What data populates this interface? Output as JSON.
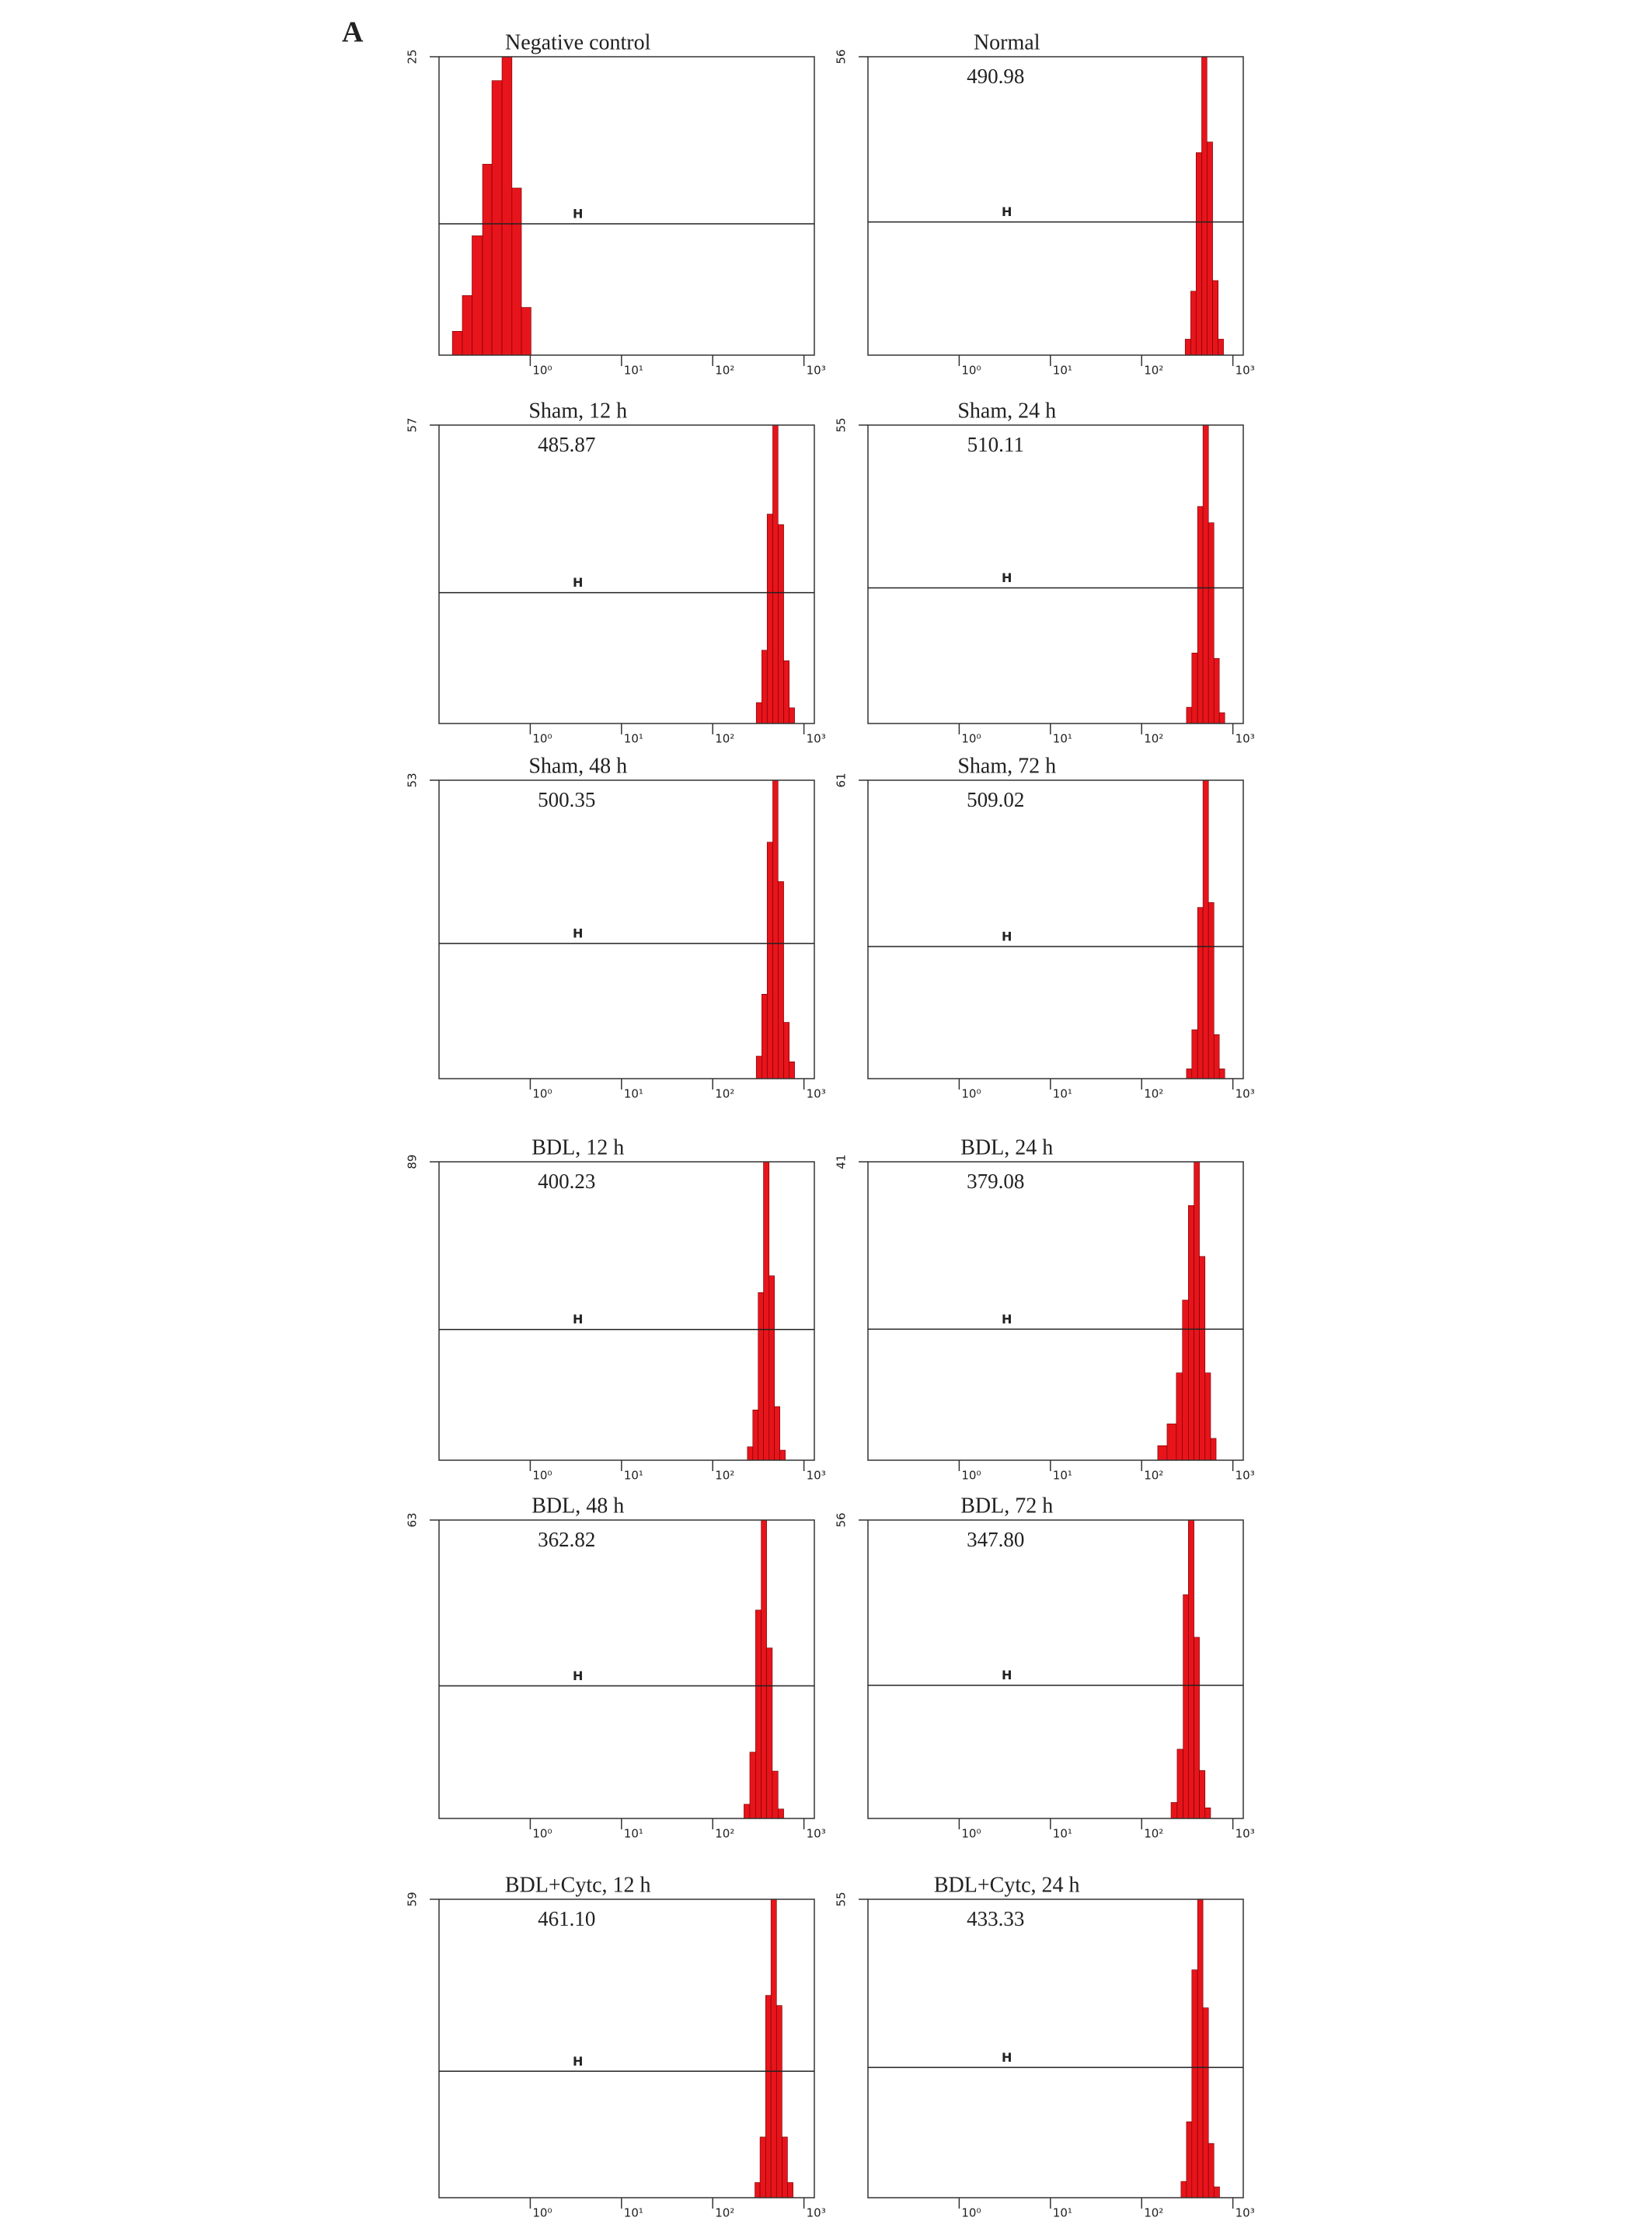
{
  "figure_label": "A",
  "chart_data": [
    {
      "type": "histogram",
      "title": "Negative control",
      "mean_label": "",
      "xscale": "log",
      "xlim": [
        0.1,
        1300
      ],
      "xticks": [
        {
          "value": 1,
          "label": "10⁰"
        },
        {
          "value": 10,
          "label": "10¹"
        },
        {
          "value": 100,
          "label": "10²"
        },
        {
          "value": 1000,
          "label": "10³"
        }
      ],
      "ylim": [
        0,
        25
      ],
      "yticks": [
        25
      ],
      "marker_label": "H",
      "marker_y": 11,
      "color": "#e8141b",
      "bins": [
        0.14,
        0.18,
        0.23,
        0.3,
        0.38,
        0.49,
        0.63,
        0.8,
        1.02
      ],
      "counts": [
        2,
        5,
        10,
        16,
        23,
        25,
        14,
        4
      ]
    },
    {
      "type": "histogram",
      "title": "Normal",
      "mean_label": "490.98",
      "xscale": "log",
      "xlim": [
        0.1,
        1300
      ],
      "xticks": [
        {
          "value": 1,
          "label": "10⁰"
        },
        {
          "value": 10,
          "label": "10¹"
        },
        {
          "value": 100,
          "label": "10²"
        },
        {
          "value": 1000,
          "label": "10³"
        }
      ],
      "ylim": [
        0,
        56
      ],
      "yticks": [
        56
      ],
      "marker_label": "H",
      "marker_y": 25,
      "color": "#e8141b",
      "bins": [
        300,
        345,
        395,
        455,
        520,
        600,
        690,
        790
      ],
      "counts": [
        3,
        12,
        38,
        56,
        40,
        14,
        3
      ]
    },
    {
      "type": "histogram",
      "title": "Sham, 12 h",
      "mean_label": "485.87",
      "xscale": "log",
      "xlim": [
        0.1,
        1300
      ],
      "xticks": [
        {
          "value": 1,
          "label": "10⁰"
        },
        {
          "value": 10,
          "label": "10¹"
        },
        {
          "value": 100,
          "label": "10²"
        },
        {
          "value": 1000,
          "label": "10³"
        }
      ],
      "ylim": [
        0,
        57
      ],
      "yticks": [
        57
      ],
      "marker_label": "H",
      "marker_y": 25,
      "color": "#e8141b",
      "bins": [
        300,
        345,
        395,
        455,
        520,
        600,
        690,
        790
      ],
      "counts": [
        4,
        14,
        40,
        57,
        38,
        12,
        3
      ]
    },
    {
      "type": "histogram",
      "title": "Sham, 24 h",
      "mean_label": "510.11",
      "xscale": "log",
      "xlim": [
        0.1,
        1300
      ],
      "xticks": [
        {
          "value": 1,
          "label": "10⁰"
        },
        {
          "value": 10,
          "label": "10¹"
        },
        {
          "value": 100,
          "label": "10²"
        },
        {
          "value": 1000,
          "label": "10³"
        }
      ],
      "ylim": [
        0,
        55
      ],
      "yticks": [
        55
      ],
      "marker_label": "H",
      "marker_y": 25,
      "color": "#e8141b",
      "bins": [
        310,
        355,
        410,
        470,
        540,
        620,
        710,
        815
      ],
      "counts": [
        3,
        13,
        40,
        55,
        37,
        12,
        2
      ]
    },
    {
      "type": "histogram",
      "title": "Sham, 48 h",
      "mean_label": "500.35",
      "xscale": "log",
      "xlim": [
        0.1,
        1300
      ],
      "xticks": [
        {
          "value": 1,
          "label": "10⁰"
        },
        {
          "value": 10,
          "label": "10¹"
        },
        {
          "value": 100,
          "label": "10²"
        },
        {
          "value": 1000,
          "label": "10³"
        }
      ],
      "ylim": [
        0,
        53
      ],
      "yticks": [
        53
      ],
      "marker_label": "H",
      "marker_y": 24,
      "color": "#e8141b",
      "bins": [
        300,
        345,
        395,
        455,
        520,
        600,
        690,
        790
      ],
      "counts": [
        4,
        15,
        42,
        53,
        35,
        10,
        3
      ]
    },
    {
      "type": "histogram",
      "title": "Sham, 72 h",
      "mean_label": "509.02",
      "xscale": "log",
      "xlim": [
        0.1,
        1300
      ],
      "xticks": [
        {
          "value": 1,
          "label": "10⁰"
        },
        {
          "value": 10,
          "label": "10¹"
        },
        {
          "value": 100,
          "label": "10²"
        },
        {
          "value": 1000,
          "label": "10³"
        }
      ],
      "ylim": [
        0,
        61
      ],
      "yticks": [
        61
      ],
      "marker_label": "H",
      "marker_y": 27,
      "color": "#e8141b",
      "bins": [
        310,
        355,
        410,
        470,
        540,
        620,
        710,
        815
      ],
      "counts": [
        2,
        10,
        35,
        61,
        36,
        9,
        2
      ]
    },
    {
      "type": "histogram",
      "title": "BDL, 12 h",
      "mean_label": "400.23",
      "xscale": "log",
      "xlim": [
        0.1,
        1300
      ],
      "xticks": [
        {
          "value": 1,
          "label": "10⁰"
        },
        {
          "value": 10,
          "label": "10¹"
        },
        {
          "value": 100,
          "label": "10²"
        },
        {
          "value": 1000,
          "label": "10³"
        }
      ],
      "ylim": [
        0,
        89
      ],
      "yticks": [
        89
      ],
      "marker_label": "H",
      "marker_y": 39,
      "color": "#e8141b",
      "bins": [
        240,
        275,
        315,
        360,
        415,
        475,
        545,
        625
      ],
      "counts": [
        4,
        15,
        50,
        89,
        55,
        16,
        3
      ]
    },
    {
      "type": "histogram",
      "title": "BDL, 24 h",
      "mean_label": "379.08",
      "xscale": "log",
      "xlim": [
        0.1,
        1300
      ],
      "xticks": [
        {
          "value": 1,
          "label": "10⁰"
        },
        {
          "value": 10,
          "label": "10¹"
        },
        {
          "value": 100,
          "label": "10²"
        },
        {
          "value": 1000,
          "label": "10³"
        }
      ],
      "ylim": [
        0,
        41
      ],
      "yticks": [
        41
      ],
      "marker_label": "H",
      "marker_y": 18,
      "color": "#e8141b",
      "bins": [
        150,
        190,
        240,
        280,
        325,
        375,
        430,
        495,
        570,
        655
      ],
      "counts": [
        2,
        5,
        12,
        22,
        35,
        41,
        28,
        12,
        3
      ]
    },
    {
      "type": "histogram",
      "title": "BDL, 48 h",
      "mean_label": "362.82",
      "xscale": "log",
      "xlim": [
        0.1,
        1300
      ],
      "xticks": [
        {
          "value": 1,
          "label": "10⁰"
        },
        {
          "value": 10,
          "label": "10¹"
        },
        {
          "value": 100,
          "label": "10²"
        },
        {
          "value": 1000,
          "label": "10³"
        }
      ],
      "ylim": [
        0,
        63
      ],
      "yticks": [
        63
      ],
      "marker_label": "H",
      "marker_y": 28,
      "color": "#e8141b",
      "bins": [
        220,
        255,
        295,
        340,
        390,
        450,
        520,
        600
      ],
      "counts": [
        3,
        14,
        44,
        63,
        36,
        10,
        2
      ]
    },
    {
      "type": "histogram",
      "title": "BDL, 72 h",
      "mean_label": "347.80",
      "xscale": "log",
      "xlim": [
        0.1,
        1300
      ],
      "xticks": [
        {
          "value": 1,
          "label": "10⁰"
        },
        {
          "value": 10,
          "label": "10¹"
        },
        {
          "value": 100,
          "label": "10²"
        },
        {
          "value": 1000,
          "label": "10³"
        }
      ],
      "ylim": [
        0,
        56
      ],
      "yticks": [
        56
      ],
      "marker_label": "H",
      "marker_y": 25,
      "color": "#e8141b",
      "bins": [
        210,
        245,
        285,
        325,
        375,
        430,
        495,
        570
      ],
      "counts": [
        3,
        13,
        42,
        56,
        34,
        9,
        2
      ]
    },
    {
      "type": "histogram",
      "title": "BDL+Cytc, 12 h",
      "mean_label": "461.10",
      "xscale": "log",
      "xlim": [
        0.1,
        1300
      ],
      "xticks": [
        {
          "value": 1,
          "label": "10⁰"
        },
        {
          "value": 10,
          "label": "10¹"
        },
        {
          "value": 100,
          "label": "10²"
        },
        {
          "value": 1000,
          "label": "10³"
        }
      ],
      "ylim": [
        0,
        59
      ],
      "yticks": [
        59
      ],
      "marker_label": "H",
      "marker_y": 25,
      "color": "#e8141b",
      "bins": [
        290,
        330,
        380,
        435,
        500,
        575,
        660,
        760
      ],
      "counts": [
        3,
        12,
        40,
        59,
        38,
        12,
        3
      ]
    },
    {
      "type": "histogram",
      "title": "BDL+Cytc, 24 h",
      "mean_label": "433.33",
      "xscale": "log",
      "xlim": [
        0.1,
        1300
      ],
      "xticks": [
        {
          "value": 1,
          "label": "10⁰"
        },
        {
          "value": 10,
          "label": "10¹"
        },
        {
          "value": 100,
          "label": "10²"
        },
        {
          "value": 1000,
          "label": "10³"
        }
      ],
      "ylim": [
        0,
        55
      ],
      "yticks": [
        55
      ],
      "marker_label": "H",
      "marker_y": 24,
      "color": "#e8141b",
      "bins": [
        270,
        310,
        355,
        410,
        470,
        540,
        620,
        715
      ],
      "counts": [
        3,
        14,
        42,
        55,
        35,
        10,
        2
      ]
    }
  ]
}
